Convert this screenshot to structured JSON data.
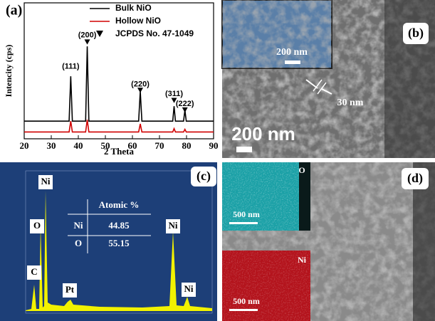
{
  "chart_data": {
    "type": "line",
    "panel_label": "(a)",
    "x_label": "2 Theta",
    "y_label": "Intencity (cps)",
    "xlim": [
      20,
      90
    ],
    "xticks": [
      20,
      30,
      40,
      50,
      60,
      70,
      80,
      90
    ],
    "ylim": [
      0,
      100
    ],
    "series": [
      {
        "name": "Bulk NiO",
        "color": "#000000",
        "x": [
          20,
          36.6,
          37.2,
          37.8,
          42.7,
          43.3,
          43.9,
          62.3,
          62.9,
          63.5,
          74.9,
          75.4,
          75.9,
          78.9,
          79.4,
          79.9,
          90
        ],
        "values": [
          13,
          13,
          46,
          13,
          13,
          68,
          13,
          13,
          35,
          13,
          13,
          24,
          13,
          13,
          21,
          13,
          13
        ]
      },
      {
        "name": "Hollow NiO",
        "color": "#d00000",
        "x": [
          20,
          36.6,
          37.2,
          37.8,
          42.7,
          43.3,
          43.9,
          62.3,
          62.9,
          63.5,
          74.9,
          75.4,
          75.9,
          78.9,
          79.4,
          79.9,
          90
        ],
        "values": [
          5,
          5,
          13,
          5,
          5,
          14,
          5,
          5,
          11,
          5,
          5,
          7.5,
          5,
          5,
          7,
          5,
          5
        ]
      },
      {
        "name": "JCPDS No. 47-1049",
        "color": "#000000",
        "type": "marker",
        "x": [
          43.3,
          62.9,
          75.4,
          79.4
        ],
        "values": [
          71,
          35.5,
          28,
          21
        ]
      }
    ],
    "annotations": [
      {
        "text": "(111)",
        "x": 37.2,
        "y": 53
      },
      {
        "text": "(200)",
        "x": 43.3,
        "y": 76
      },
      {
        "text": "(220)",
        "x": 62.9,
        "y": 40
      },
      {
        "text": "(311)",
        "x": 75.4,
        "y": 33
      },
      {
        "text": "(222)",
        "x": 79.4,
        "y": 25.5
      }
    ]
  },
  "panels": {
    "b": {
      "label": "(b)",
      "inset_scale": "200 nm",
      "thickness": "30 nm",
      "scale": "200 nm"
    },
    "c": {
      "label": "(c)",
      "peaks": [
        "Ni",
        "O",
        "C",
        "Pt",
        "Ni",
        "Ni"
      ],
      "table": {
        "header": "Atomic %",
        "rows": [
          [
            "Ni",
            44.85
          ],
          [
            "O",
            55.15
          ]
        ]
      }
    },
    "d": {
      "label": "(d)",
      "maps": [
        {
          "element": "O",
          "scale": "500 nm"
        },
        {
          "element": "Ni",
          "scale": "500 nm"
        }
      ]
    }
  }
}
